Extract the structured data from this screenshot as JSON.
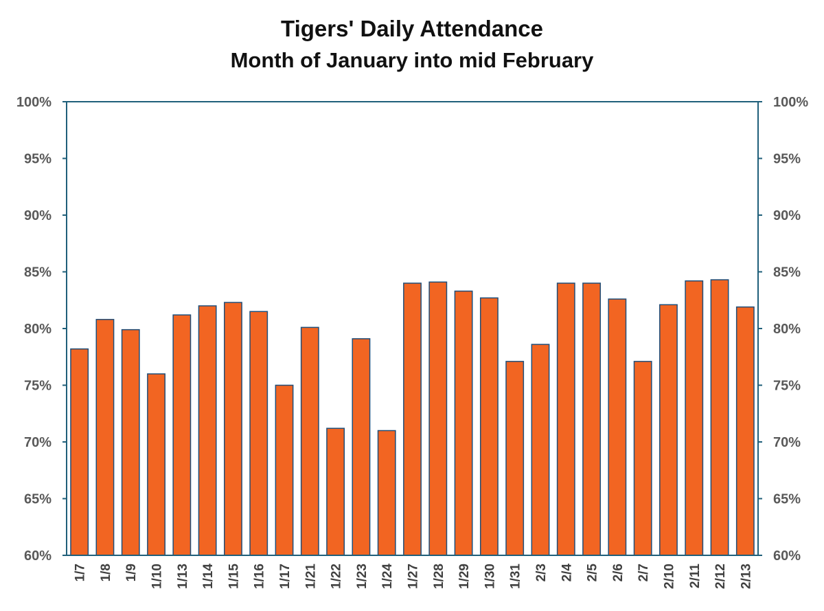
{
  "chart_data": {
    "type": "bar",
    "title": "Tigers' Daily Attendance",
    "subtitle": "Month of January into mid February",
    "xlabel": "",
    "ylabel": "",
    "ylim": [
      60,
      100
    ],
    "y_ticks": [
      "60%",
      "65%",
      "70%",
      "75%",
      "80%",
      "85%",
      "90%",
      "95%",
      "100%"
    ],
    "y_tick_values": [
      60,
      65,
      70,
      75,
      80,
      85,
      90,
      95,
      100
    ],
    "secondary_y_axis": true,
    "grid": false,
    "legend": "none",
    "bar_color": "#F26522",
    "bar_edge_color": "#1F4E79",
    "axis_color": "#1F5F7A",
    "categories": [
      "1/7",
      "1/8",
      "1/9",
      "1/10",
      "1/13",
      "1/14",
      "1/15",
      "1/16",
      "1/17",
      "1/21",
      "1/22",
      "1/23",
      "1/24",
      "1/27",
      "1/28",
      "1/29",
      "1/30",
      "1/31",
      "2/3",
      "2/4",
      "2/5",
      "2/6",
      "2/7",
      "2/10",
      "2/11",
      "2/12",
      "2/13"
    ],
    "values": [
      78.2,
      80.8,
      79.9,
      76.0,
      81.2,
      82.0,
      82.3,
      81.5,
      75.0,
      80.1,
      71.2,
      79.1,
      71.0,
      84.0,
      84.1,
      83.3,
      82.7,
      77.1,
      78.6,
      84.0,
      84.0,
      82.6,
      77.1,
      82.1,
      84.2,
      84.3,
      81.9
    ]
  }
}
